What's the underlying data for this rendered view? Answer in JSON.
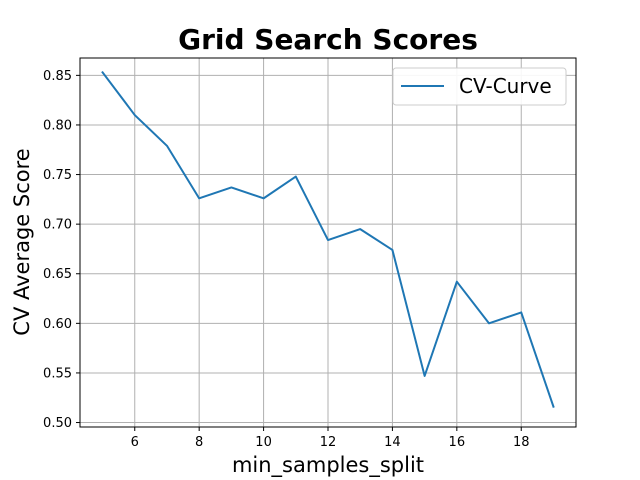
{
  "chart_data": {
    "type": "line",
    "title": "Grid Search Scores",
    "xlabel": "min_samples_split",
    "ylabel": "CV Average Score",
    "x": [
      5,
      6,
      7,
      8,
      9,
      10,
      11,
      12,
      13,
      14,
      15,
      16,
      17,
      18,
      19
    ],
    "series": [
      {
        "name": "CV-Curve",
        "color": "#1f77b4",
        "values": [
          0.853,
          0.81,
          0.779,
          0.726,
          0.737,
          0.726,
          0.748,
          0.684,
          0.695,
          0.674,
          0.547,
          0.642,
          0.6,
          0.611,
          0.516
        ]
      }
    ],
    "xlim": [
      4.3,
      19.7
    ],
    "ylim": [
      0.4955,
      0.8675
    ],
    "xticks": [
      6,
      8,
      10,
      12,
      14,
      16,
      18
    ],
    "yticks": [
      0.5,
      0.55,
      0.6,
      0.65,
      0.7,
      0.75,
      0.8,
      0.85
    ],
    "xtick_labels": [
      "6",
      "8",
      "10",
      "12",
      "14",
      "16",
      "18"
    ],
    "ytick_labels": [
      "0.50",
      "0.55",
      "0.60",
      "0.65",
      "0.70",
      "0.75",
      "0.80",
      "0.85"
    ],
    "grid": true,
    "legend_position": "top-right"
  }
}
